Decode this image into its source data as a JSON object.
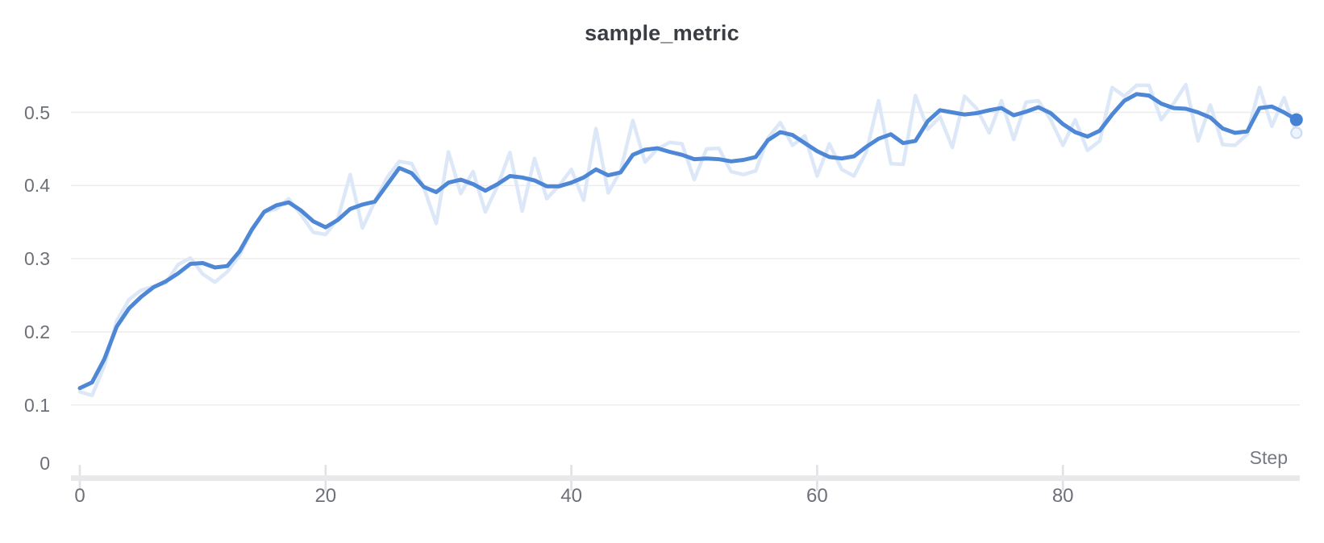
{
  "chart": {
    "title": "sample_metric",
    "x_axis_label": "Step",
    "y_tick_labels": [
      "0.5",
      "0.4",
      "0.3",
      "0.2",
      "0.1",
      "0"
    ],
    "x_tick_labels": [
      "0",
      "20",
      "40",
      "60",
      "80"
    ]
  },
  "colors": {
    "smoothed_line": "#4d87d6",
    "raw_line": "#dce7f8",
    "end_dot": "#4781d3",
    "raw_end_ring_stroke": "#cbdcf4",
    "raw_end_ring_fill": "#eef4fc",
    "gridline": "#ececee",
    "axis_bar": "#e9e9eb",
    "axis_tick": "#e2e2e6",
    "tick_text": "#6d7077",
    "title_text": "#3a3e44",
    "axis_title_text": "#767a84"
  },
  "chart_data": {
    "type": "line",
    "title": "sample_metric",
    "xlabel": "Step",
    "ylabel": "",
    "xlim": [
      0,
      99.5
    ],
    "ylim": [
      0,
      0.5545
    ],
    "x_ticks": [
      0,
      20,
      40,
      60,
      80
    ],
    "y_ticks": [
      0,
      0.1,
      0.2,
      0.3,
      0.4,
      0.5
    ],
    "grid": "horizontal",
    "legend": "none",
    "x": [
      0,
      1,
      2,
      3,
      4,
      5,
      6,
      7,
      8,
      9,
      10,
      11,
      12,
      13,
      14,
      15,
      16,
      17,
      18,
      19,
      20,
      21,
      22,
      23,
      24,
      25,
      26,
      27,
      28,
      29,
      30,
      31,
      32,
      33,
      34,
      35,
      36,
      37,
      38,
      39,
      40,
      41,
      42,
      43,
      44,
      45,
      46,
      47,
      48,
      49,
      50,
      51,
      52,
      53,
      54,
      55,
      56,
      57,
      58,
      59,
      60,
      61,
      62,
      63,
      64,
      65,
      66,
      67,
      68,
      69,
      70,
      71,
      72,
      73,
      74,
      75,
      76,
      77,
      78,
      79,
      80,
      81,
      82,
      83,
      84,
      85,
      86,
      87,
      88,
      89,
      90,
      91,
      92,
      93,
      94,
      95,
      96,
      97,
      98,
      99
    ],
    "series": [
      {
        "name": "sample_metric (raw)",
        "role": "raw",
        "color": "#dce7f8",
        "values": [
          0.118,
          0.113,
          0.154,
          0.215,
          0.244,
          0.257,
          0.262,
          0.267,
          0.292,
          0.301,
          0.279,
          0.268,
          0.282,
          0.305,
          0.338,
          0.364,
          0.368,
          0.382,
          0.36,
          0.336,
          0.333,
          0.355,
          0.415,
          0.342,
          0.378,
          0.411,
          0.433,
          0.43,
          0.397,
          0.348,
          0.446,
          0.389,
          0.419,
          0.364,
          0.4,
          0.445,
          0.365,
          0.437,
          0.382,
          0.4,
          0.422,
          0.38,
          0.478,
          0.39,
          0.42,
          0.489,
          0.432,
          0.45,
          0.459,
          0.457,
          0.408,
          0.45,
          0.451,
          0.419,
          0.415,
          0.42,
          0.465,
          0.486,
          0.455,
          0.468,
          0.413,
          0.457,
          0.422,
          0.413,
          0.446,
          0.516,
          0.43,
          0.429,
          0.523,
          0.477,
          0.494,
          0.452,
          0.522,
          0.505,
          0.472,
          0.516,
          0.463,
          0.514,
          0.516,
          0.49,
          0.455,
          0.49,
          0.448,
          0.461,
          0.534,
          0.522,
          0.537,
          0.537,
          0.49,
          0.512,
          0.538,
          0.461,
          0.51,
          0.456,
          0.455,
          0.47,
          0.534,
          0.481,
          0.52,
          0.472
        ]
      },
      {
        "name": "sample_metric (smoothed)",
        "role": "smoothed",
        "color": "#4d87d6",
        "values": [
          0.123,
          0.131,
          0.163,
          0.207,
          0.232,
          0.248,
          0.261,
          0.269,
          0.28,
          0.293,
          0.294,
          0.288,
          0.29,
          0.31,
          0.34,
          0.364,
          0.373,
          0.377,
          0.366,
          0.351,
          0.343,
          0.353,
          0.368,
          0.374,
          0.378,
          0.401,
          0.424,
          0.417,
          0.398,
          0.391,
          0.404,
          0.408,
          0.402,
          0.393,
          0.402,
          0.413,
          0.411,
          0.407,
          0.399,
          0.399,
          0.404,
          0.411,
          0.422,
          0.414,
          0.418,
          0.442,
          0.449,
          0.451,
          0.446,
          0.442,
          0.436,
          0.437,
          0.436,
          0.433,
          0.435,
          0.439,
          0.462,
          0.473,
          0.469,
          0.458,
          0.447,
          0.439,
          0.437,
          0.44,
          0.453,
          0.464,
          0.47,
          0.458,
          0.461,
          0.488,
          0.503,
          0.5,
          0.497,
          0.499,
          0.503,
          0.506,
          0.496,
          0.501,
          0.507,
          0.499,
          0.484,
          0.473,
          0.467,
          0.475,
          0.497,
          0.516,
          0.525,
          0.523,
          0.512,
          0.506,
          0.505,
          0.5,
          0.493,
          0.478,
          0.472,
          0.474,
          0.506,
          0.508,
          0.5,
          0.49
        ]
      }
    ],
    "end_markers": true
  }
}
